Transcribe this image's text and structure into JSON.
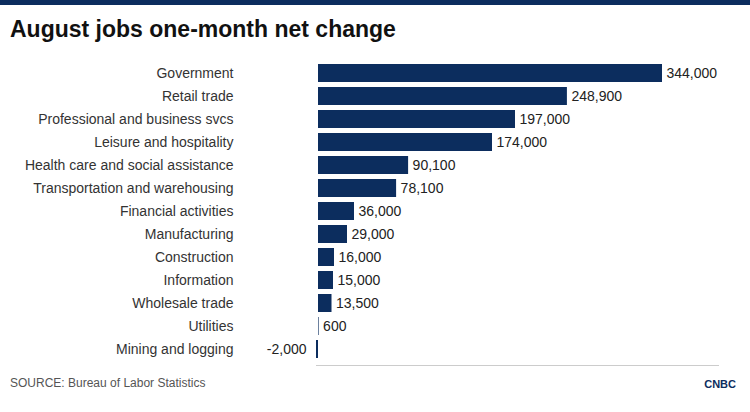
{
  "chart_data": {
    "type": "bar",
    "title": "August jobs one-month net change",
    "source": "SOURCE: Bureau of Labor Statistics",
    "logo": "CNBC",
    "orientation": "horizontal",
    "categories": [
      "Government",
      "Retail trade",
      "Professional and business svcs",
      "Leisure and hospitality",
      "Health care and social assistance",
      "Transportation and warehousing",
      "Financial activities",
      "Manufacturing",
      "Construction",
      "Information",
      "Wholesale trade",
      "Utilities",
      "Mining and logging"
    ],
    "values": [
      344000,
      248900,
      197000,
      174000,
      90100,
      78100,
      36000,
      29000,
      16000,
      15000,
      13500,
      600,
      -2000
    ],
    "value_labels": [
      "344,000",
      "248,900",
      "197,000",
      "174,000",
      "90,100",
      "78,100",
      "36,000",
      "29,000",
      "16,000",
      "15,000",
      "13,500",
      "600",
      "-2,000"
    ],
    "color": "#0c2d5e",
    "xlim": [
      -2000,
      400000
    ],
    "tick_labels": "y",
    "data_labels": true
  }
}
